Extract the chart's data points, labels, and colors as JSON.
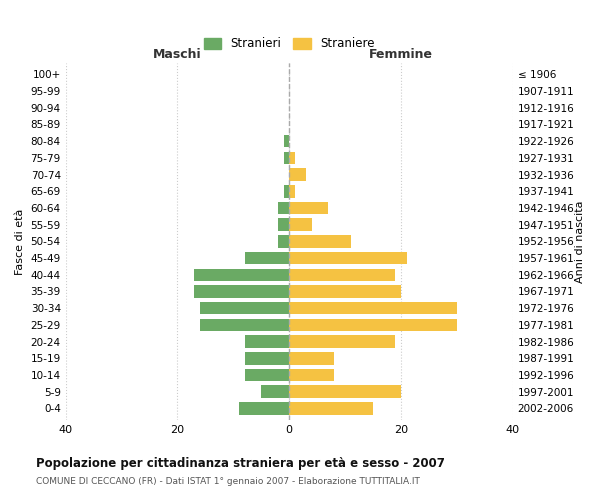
{
  "age_groups": [
    "0-4",
    "5-9",
    "10-14",
    "15-19",
    "20-24",
    "25-29",
    "30-34",
    "35-39",
    "40-44",
    "45-49",
    "50-54",
    "55-59",
    "60-64",
    "65-69",
    "70-74",
    "75-79",
    "80-84",
    "85-89",
    "90-94",
    "95-99",
    "100+"
  ],
  "birth_years": [
    "2002-2006",
    "1997-2001",
    "1992-1996",
    "1987-1991",
    "1982-1986",
    "1977-1981",
    "1972-1976",
    "1967-1971",
    "1962-1966",
    "1957-1961",
    "1952-1956",
    "1947-1951",
    "1942-1946",
    "1937-1941",
    "1932-1936",
    "1927-1931",
    "1922-1926",
    "1917-1921",
    "1912-1916",
    "1907-1911",
    "≤ 1906"
  ],
  "maschi": [
    9,
    5,
    8,
    8,
    8,
    16,
    16,
    17,
    17,
    8,
    2,
    2,
    2,
    1,
    0,
    1,
    1,
    0,
    0,
    0,
    0
  ],
  "femmine": [
    15,
    20,
    8,
    8,
    19,
    30,
    30,
    20,
    19,
    21,
    11,
    4,
    7,
    1,
    3,
    1,
    0,
    0,
    0,
    0,
    0
  ],
  "xlim": [
    -40,
    40
  ],
  "xticks": [
    -40,
    -20,
    0,
    20,
    40
  ],
  "xtick_labels": [
    "40",
    "20",
    "0",
    "20",
    "40"
  ],
  "maschi_color": "#6aaa64",
  "femmine_color": "#f5c242",
  "title": "Popolazione per cittadinanza straniera per età e sesso - 2007",
  "subtitle": "COMUNE DI CECCANO (FR) - Dati ISTAT 1° gennaio 2007 - Elaborazione TUTTITALIA.IT",
  "ylabel_left": "Fasce di età",
  "ylabel_right": "Anni di nascita",
  "maschi_label": "Maschi",
  "femmine_label": "Femmine",
  "legend_stranieri": "Stranieri",
  "legend_straniere": "Straniere",
  "background_color": "#ffffff",
  "grid_color": "#cccccc"
}
